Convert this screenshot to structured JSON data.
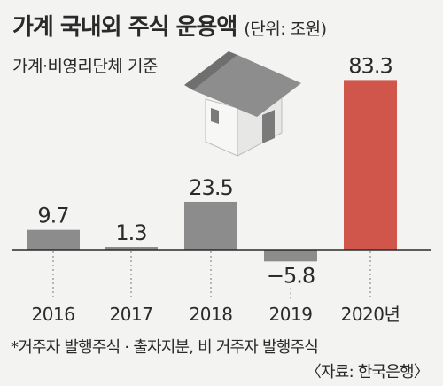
{
  "header": {
    "title": "가계 국내외 주식 운용액",
    "unit": "(단위: 조원)",
    "subtitle": "가계·비영리단체 기준"
  },
  "footer": {
    "note": "*거주자 발행주식 · 출자지분, 비 거주자 발행주식",
    "source": "〈자료: 한국은행〉"
  },
  "colors": {
    "background": "#f3f3f1",
    "bar_default": "#8c8c8c",
    "bar_highlight": "#d0554b",
    "house_wall": "#ececea",
    "house_roof": "#8d8d8d"
  },
  "chart_data": {
    "type": "bar",
    "categories": [
      "2016",
      "2017",
      "2018",
      "2019",
      "2020년"
    ],
    "values": [
      9.7,
      1.3,
      23.5,
      -5.8,
      83.3
    ],
    "value_labels": [
      "9.7",
      "1.3",
      "23.5",
      "−5.8",
      "83.3"
    ],
    "highlight_index": 4,
    "ylim": [
      -5.8,
      83.3
    ],
    "grid": false,
    "legend": "none"
  }
}
